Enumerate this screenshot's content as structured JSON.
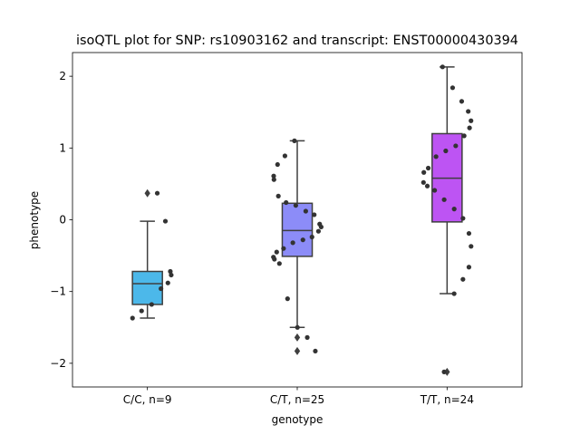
{
  "chart_data": {
    "type": "box",
    "title": "isoQTL plot for SNP: rs10903162 and transcript: ENST00000430394",
    "xlabel": "genotype",
    "ylabel": "phenotype",
    "ylim": [
      -2.33,
      2.33
    ],
    "yticks": [
      -2,
      -1,
      0,
      1,
      2
    ],
    "yticklabels": [
      "−2",
      "−1",
      "0",
      "1",
      "2"
    ],
    "grid": false,
    "categories": [
      "C/C, n=9",
      "C/T, n=25",
      "T/T, n=24"
    ],
    "colors": [
      "#4cb8ea",
      "#8c8cf8",
      "#bd54f3"
    ],
    "boxes": [
      {
        "q1": -1.18,
        "median": -0.89,
        "q3": -0.72,
        "whisker_low": -1.37,
        "whisker_high": -0.02,
        "outliers": [
          0.37
        ]
      },
      {
        "q1": -0.51,
        "median": -0.15,
        "q3": 0.23,
        "whisker_low": -1.5,
        "whisker_high": 1.1,
        "outliers": [
          -1.64,
          -1.83
        ]
      },
      {
        "q1": -0.03,
        "median": 0.58,
        "q3": 1.2,
        "whisker_low": -1.03,
        "whisker_high": 2.13,
        "outliers": [
          -2.12
        ]
      }
    ],
    "points": [
      [
        0.37,
        -0.02,
        -0.72,
        -0.77,
        -0.88,
        -0.96,
        -1.18,
        -1.27,
        -1.37
      ],
      [
        1.1,
        0.89,
        0.77,
        0.61,
        0.56,
        0.33,
        0.24,
        0.2,
        0.12,
        0.07,
        -0.06,
        -0.1,
        -0.16,
        -0.24,
        -0.28,
        -0.32,
        -0.4,
        -0.45,
        -0.52,
        -0.55,
        -0.61,
        -1.1,
        -1.5,
        -1.64,
        -1.83
      ],
      [
        2.13,
        1.84,
        1.65,
        1.51,
        1.38,
        1.28,
        1.17,
        1.03,
        0.96,
        0.88,
        0.72,
        0.66,
        0.52,
        0.47,
        0.41,
        0.28,
        0.15,
        0.02,
        -0.19,
        -0.37,
        -0.66,
        -0.83,
        -1.03,
        -2.12
      ]
    ]
  }
}
